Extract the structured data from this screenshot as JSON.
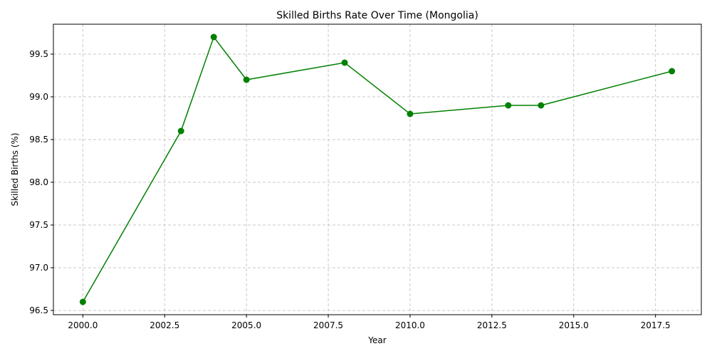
{
  "chart_data": {
    "type": "line",
    "title": "Skilled Births Rate Over Time (Mongolia)",
    "xlabel": "Year",
    "ylabel": "Skilled Births (%)",
    "xlim": [
      1999.1,
      2018.9
    ],
    "ylim": [
      96.45,
      99.85
    ],
    "x_ticks": [
      2000.0,
      2002.5,
      2005.0,
      2007.5,
      2010.0,
      2012.5,
      2015.0,
      2017.5
    ],
    "x_tick_labels": [
      "2000.0",
      "2002.5",
      "2005.0",
      "2007.5",
      "2010.0",
      "2012.5",
      "2015.0",
      "2017.5"
    ],
    "y_ticks": [
      96.5,
      97.0,
      97.5,
      98.0,
      98.5,
      99.0,
      99.5
    ],
    "y_tick_labels": [
      "96.5",
      "97.0",
      "97.5",
      "98.0",
      "98.5",
      "99.0",
      "99.5"
    ],
    "grid": true,
    "line_color": "#008000",
    "grid_color": "#c8c8c8",
    "series": [
      {
        "x": [
          2000,
          2003,
          2004,
          2005,
          2008,
          2010,
          2013,
          2014,
          2018
        ],
        "values": [
          96.6,
          98.6,
          99.7,
          99.2,
          99.4,
          98.8,
          98.9,
          98.9,
          99.3
        ]
      }
    ]
  }
}
